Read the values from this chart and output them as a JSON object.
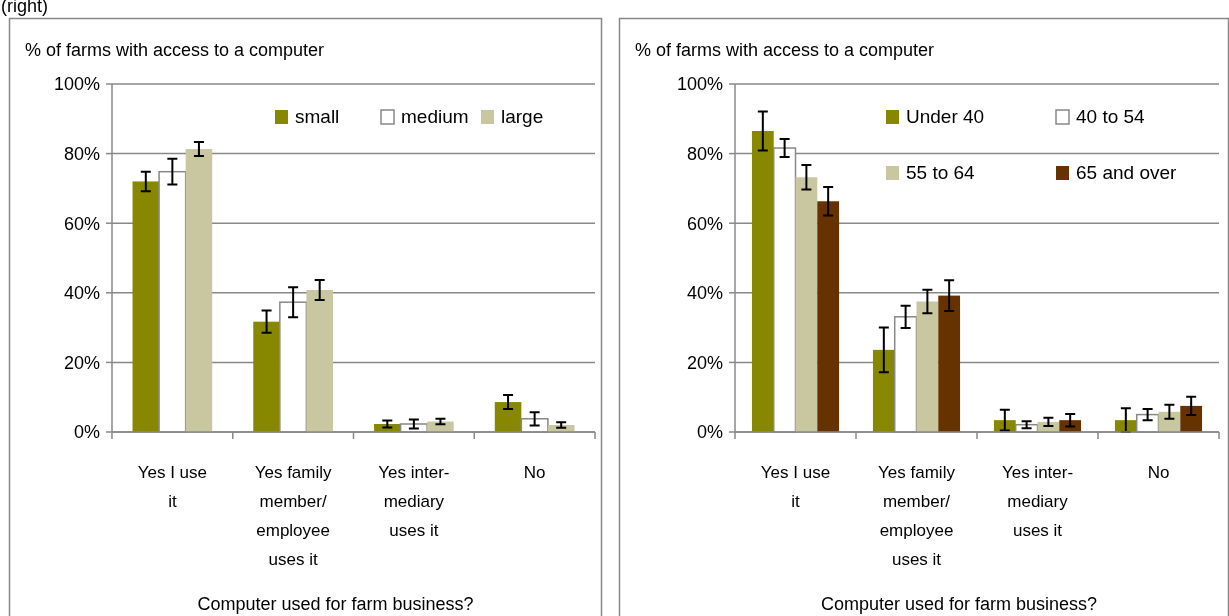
{
  "chart_data": [
    {
      "type": "bar",
      "ylabel": "% of farms with access to a computer",
      "xlabel": "Computer used for farm business?",
      "annotations": [
        "(right)"
      ],
      "categories": [
        "Yes I use it",
        "Yes family member/ employee uses it",
        "Yes inter-mediary uses it",
        "No"
      ],
      "series": [
        {
          "name": "small",
          "color": "#888800",
          "values": [
            72,
            31.7,
            2.3,
            8.6
          ],
          "errors": [
            2.8,
            3.2,
            1,
            2
          ]
        },
        {
          "name": "medium",
          "color": "#ffffff",
          "values": [
            74.8,
            37.3,
            2.3,
            3.8
          ],
          "errors": [
            3.7,
            4.3,
            1.3,
            1.9
          ]
        },
        {
          "name": "large",
          "color": "#c9c7a0",
          "values": [
            81.3,
            40.8,
            3,
            2
          ],
          "errors": [
            2,
            2.9,
            0.8,
            0.8
          ]
        }
      ],
      "ylim": [
        0,
        100
      ],
      "yticks": [
        {
          "value": 0,
          "label": "0%"
        },
        {
          "value": 20,
          "label": "20%"
        },
        {
          "value": 40,
          "label": "40%"
        },
        {
          "value": 60,
          "label": "60%"
        },
        {
          "value": 80,
          "label": "80%"
        },
        {
          "value": 100,
          "label": "100%"
        }
      ],
      "grid": "y",
      "legend": "top right"
    },
    {
      "type": "bar",
      "ylabel": "% of farms with access to a computer",
      "xlabel": "Computer used for farm business?",
      "categories": [
        "Yes I use it",
        "Yes family member/ employee uses it",
        "Yes inter-mediary uses it",
        "No"
      ],
      "series": [
        {
          "name": "Under 40",
          "color": "#888800",
          "values": [
            86.5,
            23.6,
            3.4,
            3.4
          ],
          "errors": [
            5.6,
            6.4,
            3,
            3.4
          ]
        },
        {
          "name": "40 to 54",
          "color": "#ffffff",
          "values": [
            81.6,
            33.1,
            2.1,
            5
          ],
          "errors": [
            2.6,
            3.2,
            1,
            1.6
          ]
        },
        {
          "name": "55 to 64",
          "color": "#c9c7a0",
          "values": [
            73.2,
            37.5,
            2.9,
            5.8
          ],
          "errors": [
            3.5,
            3.4,
            1.2,
            2
          ]
        },
        {
          "name": "65 and over",
          "color": "#663300",
          "values": [
            66.3,
            39.2,
            3.4,
            7.5
          ],
          "errors": [
            4.1,
            4.4,
            1.8,
            2.6
          ]
        }
      ],
      "ylim": [
        0,
        100
      ],
      "yticks": [
        {
          "value": 0,
          "label": "0%"
        },
        {
          "value": 20,
          "label": "20%"
        },
        {
          "value": 40,
          "label": "40%"
        },
        {
          "value": 60,
          "label": "60%"
        },
        {
          "value": 80,
          "label": "80%"
        },
        {
          "value": 100,
          "label": "100%"
        }
      ],
      "grid": "y",
      "legend": "top right"
    }
  ]
}
